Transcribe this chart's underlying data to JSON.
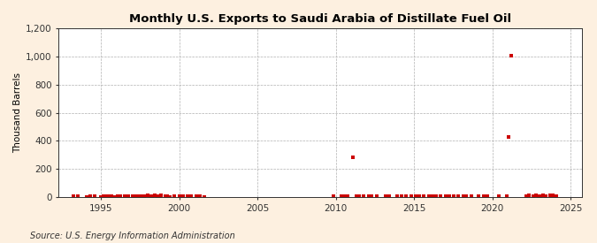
{
  "title": "Monthly U.S. Exports to Saudi Arabia of Distillate Fuel Oil",
  "ylabel": "Thousand Barrels",
  "source": "Source: U.S. Energy Information Administration",
  "background_color": "#fdf0e0",
  "plot_bg_color": "#ffffff",
  "marker_color": "#cc0000",
  "ylim": [
    0,
    1200
  ],
  "yticks": [
    0,
    200,
    400,
    600,
    800,
    1000,
    1200
  ],
  "ytick_labels": [
    "0",
    "200",
    "400",
    "600",
    "800",
    "1,000",
    "1,200"
  ],
  "xlim_start": 1992.3,
  "xlim_end": 2025.7,
  "xticks": [
    1995,
    2000,
    2005,
    2010,
    2015,
    2020,
    2025
  ],
  "data": [
    [
      1993.0,
      0
    ],
    [
      1993.083,
      0
    ],
    [
      1993.167,
      0
    ],
    [
      1993.25,
      8
    ],
    [
      1993.333,
      0
    ],
    [
      1993.417,
      0
    ],
    [
      1993.5,
      5
    ],
    [
      1993.583,
      0
    ],
    [
      1993.667,
      0
    ],
    [
      1993.75,
      0
    ],
    [
      1993.833,
      0
    ],
    [
      1993.917,
      0
    ],
    [
      1994.0,
      0
    ],
    [
      1994.083,
      3
    ],
    [
      1994.167,
      0
    ],
    [
      1994.25,
      0
    ],
    [
      1994.333,
      5
    ],
    [
      1994.417,
      0
    ],
    [
      1994.5,
      0
    ],
    [
      1994.583,
      4
    ],
    [
      1994.667,
      0
    ],
    [
      1994.75,
      0
    ],
    [
      1994.833,
      0
    ],
    [
      1994.917,
      0
    ],
    [
      1995.0,
      3
    ],
    [
      1995.083,
      0
    ],
    [
      1995.167,
      6
    ],
    [
      1995.25,
      0
    ],
    [
      1995.333,
      4
    ],
    [
      1995.417,
      7
    ],
    [
      1995.5,
      0
    ],
    [
      1995.583,
      0
    ],
    [
      1995.667,
      5
    ],
    [
      1995.75,
      0
    ],
    [
      1995.833,
      3
    ],
    [
      1995.917,
      0
    ],
    [
      1996.0,
      0
    ],
    [
      1996.083,
      8
    ],
    [
      1996.167,
      0
    ],
    [
      1996.25,
      4
    ],
    [
      1996.333,
      0
    ],
    [
      1996.417,
      0
    ],
    [
      1996.5,
      6
    ],
    [
      1996.583,
      0
    ],
    [
      1996.667,
      0
    ],
    [
      1996.75,
      5
    ],
    [
      1996.833,
      0
    ],
    [
      1996.917,
      0
    ],
    [
      1997.0,
      7
    ],
    [
      1997.083,
      0
    ],
    [
      1997.167,
      9
    ],
    [
      1997.25,
      0
    ],
    [
      1997.333,
      5
    ],
    [
      1997.417,
      0
    ],
    [
      1997.5,
      7
    ],
    [
      1997.583,
      10
    ],
    [
      1997.667,
      0
    ],
    [
      1997.75,
      6
    ],
    [
      1997.833,
      0
    ],
    [
      1997.917,
      0
    ],
    [
      1998.0,
      12
    ],
    [
      1998.083,
      0
    ],
    [
      1998.167,
      9
    ],
    [
      1998.25,
      6
    ],
    [
      1998.333,
      0
    ],
    [
      1998.417,
      11
    ],
    [
      1998.5,
      0
    ],
    [
      1998.583,
      8
    ],
    [
      1998.667,
      0
    ],
    [
      1998.75,
      4
    ],
    [
      1998.833,
      13
    ],
    [
      1998.917,
      0
    ],
    [
      1999.0,
      0
    ],
    [
      1999.083,
      6
    ],
    [
      1999.167,
      0
    ],
    [
      1999.25,
      4
    ],
    [
      1999.333,
      0
    ],
    [
      1999.417,
      3
    ],
    [
      1999.5,
      0
    ],
    [
      1999.583,
      0
    ],
    [
      1999.667,
      5
    ],
    [
      1999.75,
      0
    ],
    [
      1999.833,
      0
    ],
    [
      1999.917,
      0
    ],
    [
      2000.0,
      7
    ],
    [
      2000.083,
      0
    ],
    [
      2000.167,
      0
    ],
    [
      2000.25,
      4
    ],
    [
      2000.333,
      0
    ],
    [
      2000.417,
      0
    ],
    [
      2000.5,
      8
    ],
    [
      2000.583,
      0
    ],
    [
      2000.667,
      0
    ],
    [
      2000.75,
      5
    ],
    [
      2000.833,
      0
    ],
    [
      2000.917,
      0
    ],
    [
      2001.0,
      0
    ],
    [
      2001.083,
      6
    ],
    [
      2001.167,
      0
    ],
    [
      2001.25,
      0
    ],
    [
      2001.333,
      4
    ],
    [
      2001.417,
      0
    ],
    [
      2001.5,
      0
    ],
    [
      2001.583,
      3
    ],
    [
      2001.667,
      0
    ],
    [
      2001.75,
      0
    ],
    [
      2001.833,
      0
    ],
    [
      2001.917,
      0
    ],
    [
      2002.0,
      0
    ],
    [
      2002.083,
      0
    ],
    [
      2002.167,
      0
    ],
    [
      2002.25,
      0
    ],
    [
      2002.333,
      0
    ],
    [
      2002.417,
      0
    ],
    [
      2002.5,
      0
    ],
    [
      2002.583,
      0
    ],
    [
      2002.667,
      0
    ],
    [
      2002.75,
      0
    ],
    [
      2002.833,
      0
    ],
    [
      2002.917,
      0
    ],
    [
      2003.0,
      0
    ],
    [
      2003.083,
      0
    ],
    [
      2003.167,
      0
    ],
    [
      2003.25,
      0
    ],
    [
      2003.333,
      0
    ],
    [
      2003.417,
      0
    ],
    [
      2003.5,
      0
    ],
    [
      2003.583,
      0
    ],
    [
      2003.667,
      0
    ],
    [
      2003.75,
      0
    ],
    [
      2003.833,
      0
    ],
    [
      2003.917,
      0
    ],
    [
      2004.0,
      0
    ],
    [
      2004.083,
      0
    ],
    [
      2004.167,
      0
    ],
    [
      2004.25,
      0
    ],
    [
      2004.333,
      0
    ],
    [
      2004.417,
      0
    ],
    [
      2004.5,
      0
    ],
    [
      2004.583,
      0
    ],
    [
      2004.667,
      0
    ],
    [
      2004.75,
      0
    ],
    [
      2004.833,
      0
    ],
    [
      2004.917,
      0
    ],
    [
      2005.0,
      0
    ],
    [
      2005.083,
      0
    ],
    [
      2005.167,
      0
    ],
    [
      2005.25,
      0
    ],
    [
      2005.333,
      0
    ],
    [
      2005.417,
      0
    ],
    [
      2005.5,
      0
    ],
    [
      2005.583,
      0
    ],
    [
      2005.667,
      0
    ],
    [
      2005.75,
      0
    ],
    [
      2005.833,
      0
    ],
    [
      2005.917,
      0
    ],
    [
      2006.0,
      0
    ],
    [
      2006.083,
      0
    ],
    [
      2006.167,
      0
    ],
    [
      2006.25,
      0
    ],
    [
      2006.333,
      0
    ],
    [
      2006.417,
      0
    ],
    [
      2006.5,
      0
    ],
    [
      2006.583,
      0
    ],
    [
      2006.667,
      0
    ],
    [
      2006.75,
      0
    ],
    [
      2006.833,
      0
    ],
    [
      2006.917,
      0
    ],
    [
      2007.0,
      0
    ],
    [
      2007.083,
      0
    ],
    [
      2007.167,
      0
    ],
    [
      2007.25,
      0
    ],
    [
      2007.333,
      0
    ],
    [
      2007.417,
      0
    ],
    [
      2007.5,
      0
    ],
    [
      2007.583,
      0
    ],
    [
      2007.667,
      0
    ],
    [
      2007.75,
      0
    ],
    [
      2007.833,
      0
    ],
    [
      2007.917,
      0
    ],
    [
      2008.0,
      0
    ],
    [
      2008.083,
      0
    ],
    [
      2008.167,
      0
    ],
    [
      2008.25,
      0
    ],
    [
      2008.333,
      0
    ],
    [
      2008.417,
      0
    ],
    [
      2008.5,
      0
    ],
    [
      2008.583,
      0
    ],
    [
      2008.667,
      0
    ],
    [
      2008.75,
      0
    ],
    [
      2008.833,
      0
    ],
    [
      2008.917,
      0
    ],
    [
      2009.0,
      0
    ],
    [
      2009.083,
      0
    ],
    [
      2009.167,
      0
    ],
    [
      2009.25,
      0
    ],
    [
      2009.333,
      0
    ],
    [
      2009.417,
      0
    ],
    [
      2009.5,
      0
    ],
    [
      2009.583,
      0
    ],
    [
      2009.667,
      0
    ],
    [
      2009.75,
      0
    ],
    [
      2009.833,
      5
    ],
    [
      2009.917,
      0
    ],
    [
      2010.0,
      0
    ],
    [
      2010.083,
      0
    ],
    [
      2010.167,
      0
    ],
    [
      2010.25,
      0
    ],
    [
      2010.333,
      4
    ],
    [
      2010.417,
      0
    ],
    [
      2010.5,
      6
    ],
    [
      2010.583,
      0
    ],
    [
      2010.667,
      0
    ],
    [
      2010.75,
      8
    ],
    [
      2010.833,
      0
    ],
    [
      2010.917,
      0
    ],
    [
      2011.0,
      0
    ],
    [
      2011.083,
      285
    ],
    [
      2011.167,
      0
    ],
    [
      2011.25,
      0
    ],
    [
      2011.333,
      5
    ],
    [
      2011.417,
      0
    ],
    [
      2011.5,
      6
    ],
    [
      2011.583,
      0
    ],
    [
      2011.667,
      0
    ],
    [
      2011.75,
      4
    ],
    [
      2011.833,
      0
    ],
    [
      2011.917,
      0
    ],
    [
      2012.0,
      0
    ],
    [
      2012.083,
      8
    ],
    [
      2012.167,
      0
    ],
    [
      2012.25,
      5
    ],
    [
      2012.333,
      0
    ],
    [
      2012.417,
      0
    ],
    [
      2012.5,
      0
    ],
    [
      2012.583,
      6
    ],
    [
      2012.667,
      0
    ],
    [
      2012.75,
      0
    ],
    [
      2012.833,
      0
    ],
    [
      2012.917,
      0
    ],
    [
      2013.0,
      0
    ],
    [
      2013.083,
      0
    ],
    [
      2013.167,
      5
    ],
    [
      2013.25,
      0
    ],
    [
      2013.333,
      0
    ],
    [
      2013.417,
      8
    ],
    [
      2013.5,
      0
    ],
    [
      2013.583,
      0
    ],
    [
      2013.667,
      0
    ],
    [
      2013.75,
      0
    ],
    [
      2013.833,
      0
    ],
    [
      2013.917,
      7
    ],
    [
      2014.0,
      0
    ],
    [
      2014.083,
      0
    ],
    [
      2014.167,
      5
    ],
    [
      2014.25,
      0
    ],
    [
      2014.333,
      0
    ],
    [
      2014.417,
      0
    ],
    [
      2014.5,
      6
    ],
    [
      2014.583,
      0
    ],
    [
      2014.667,
      0
    ],
    [
      2014.75,
      0
    ],
    [
      2014.833,
      5
    ],
    [
      2014.917,
      0
    ],
    [
      2015.0,
      0
    ],
    [
      2015.083,
      4
    ],
    [
      2015.167,
      0
    ],
    [
      2015.25,
      0
    ],
    [
      2015.333,
      7
    ],
    [
      2015.417,
      0
    ],
    [
      2015.5,
      0
    ],
    [
      2015.583,
      5
    ],
    [
      2015.667,
      0
    ],
    [
      2015.75,
      0
    ],
    [
      2015.833,
      0
    ],
    [
      2015.917,
      4
    ],
    [
      2016.0,
      0
    ],
    [
      2016.083,
      0
    ],
    [
      2016.167,
      5
    ],
    [
      2016.25,
      0
    ],
    [
      2016.333,
      0
    ],
    [
      2016.417,
      8
    ],
    [
      2016.5,
      0
    ],
    [
      2016.583,
      0
    ],
    [
      2016.667,
      5
    ],
    [
      2016.75,
      0
    ],
    [
      2016.833,
      0
    ],
    [
      2016.917,
      0
    ],
    [
      2017.0,
      6
    ],
    [
      2017.083,
      0
    ],
    [
      2017.167,
      0
    ],
    [
      2017.25,
      4
    ],
    [
      2017.333,
      0
    ],
    [
      2017.417,
      0
    ],
    [
      2017.5,
      7
    ],
    [
      2017.583,
      0
    ],
    [
      2017.667,
      0
    ],
    [
      2017.75,
      0
    ],
    [
      2017.833,
      5
    ],
    [
      2017.917,
      0
    ],
    [
      2018.0,
      0
    ],
    [
      2018.083,
      0
    ],
    [
      2018.167,
      4
    ],
    [
      2018.25,
      0
    ],
    [
      2018.333,
      7
    ],
    [
      2018.417,
      0
    ],
    [
      2018.5,
      0
    ],
    [
      2018.583,
      0
    ],
    [
      2018.667,
      5
    ],
    [
      2018.75,
      0
    ],
    [
      2018.833,
      0
    ],
    [
      2018.917,
      0
    ],
    [
      2019.0,
      0
    ],
    [
      2019.083,
      5
    ],
    [
      2019.167,
      0
    ],
    [
      2019.25,
      0
    ],
    [
      2019.333,
      0
    ],
    [
      2019.417,
      4
    ],
    [
      2019.5,
      0
    ],
    [
      2019.583,
      0
    ],
    [
      2019.667,
      6
    ],
    [
      2019.75,
      0
    ],
    [
      2019.833,
      0
    ],
    [
      2019.917,
      0
    ],
    [
      2020.0,
      0
    ],
    [
      2020.083,
      0
    ],
    [
      2020.167,
      0
    ],
    [
      2020.25,
      0
    ],
    [
      2020.333,
      0
    ],
    [
      2020.417,
      4
    ],
    [
      2020.5,
      0
    ],
    [
      2020.583,
      0
    ],
    [
      2020.667,
      0
    ],
    [
      2020.75,
      0
    ],
    [
      2020.833,
      0
    ],
    [
      2020.917,
      5
    ],
    [
      2021.0,
      430
    ],
    [
      2021.083,
      0
    ],
    [
      2021.167,
      1005
    ],
    [
      2021.25,
      0
    ],
    [
      2021.333,
      0
    ],
    [
      2021.417,
      0
    ],
    [
      2021.5,
      0
    ],
    [
      2021.583,
      0
    ],
    [
      2021.667,
      0
    ],
    [
      2021.75,
      0
    ],
    [
      2021.833,
      0
    ],
    [
      2021.917,
      0
    ],
    [
      2022.0,
      0
    ],
    [
      2022.083,
      0
    ],
    [
      2022.167,
      8
    ],
    [
      2022.25,
      0
    ],
    [
      2022.333,
      12
    ],
    [
      2022.417,
      0
    ],
    [
      2022.5,
      0
    ],
    [
      2022.583,
      9
    ],
    [
      2022.667,
      0
    ],
    [
      2022.75,
      15
    ],
    [
      2022.833,
      0
    ],
    [
      2022.917,
      10
    ],
    [
      2023.0,
      0
    ],
    [
      2023.083,
      7
    ],
    [
      2023.167,
      0
    ],
    [
      2023.25,
      12
    ],
    [
      2023.333,
      0
    ],
    [
      2023.417,
      9
    ],
    [
      2023.5,
      0
    ],
    [
      2023.583,
      0
    ],
    [
      2023.667,
      14
    ],
    [
      2023.75,
      0
    ],
    [
      2023.833,
      11
    ],
    [
      2023.917,
      0
    ],
    [
      2024.0,
      0
    ],
    [
      2024.083,
      10
    ],
    [
      2024.167,
      0
    ],
    [
      2024.25,
      0
    ],
    [
      2024.333,
      0
    ],
    [
      2024.417,
      0
    ],
    [
      2024.5,
      0
    ],
    [
      2024.583,
      0
    ],
    [
      2024.667,
      0
    ],
    [
      2024.75,
      0
    ],
    [
      2024.833,
      0
    ],
    [
      2024.917,
      0
    ]
  ]
}
